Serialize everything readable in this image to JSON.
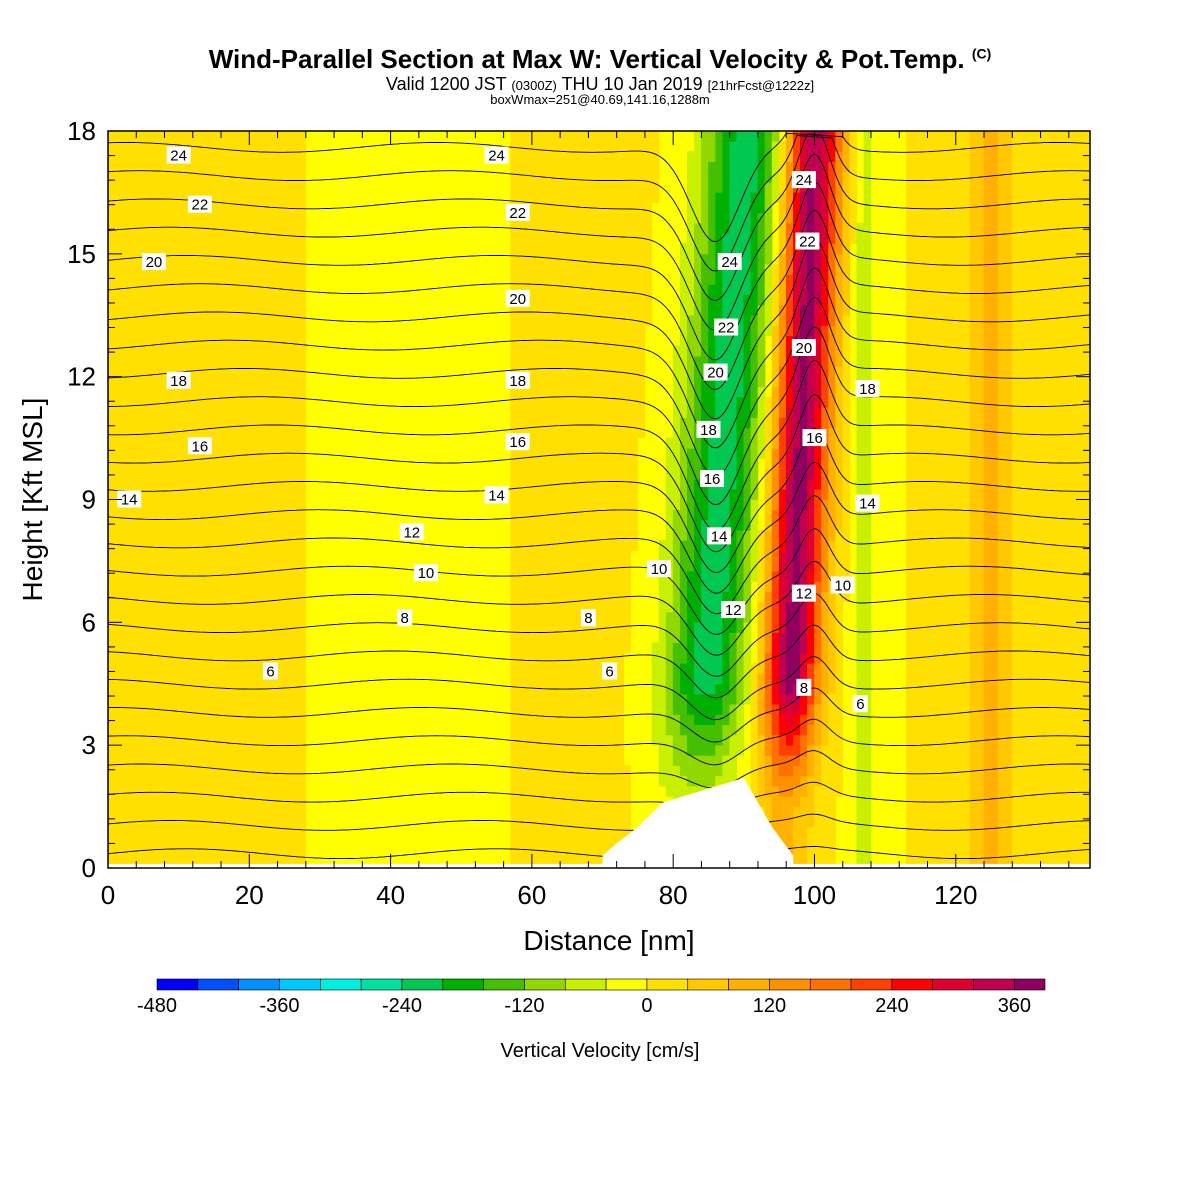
{
  "header": {
    "title_main": "Wind-Parallel Section at Max W: Vertical Velocity & Pot.Temp.",
    "title_mark": "(C)",
    "valid_prefix": "Valid 1200 JST",
    "valid_zulu": "(0300Z)",
    "valid_suffix": "THU 10 Jan 2019",
    "forecast": "[21hrFcst@1222z]",
    "box_info": "boxWmax=251@40.69,141.16,1288m"
  },
  "colors": {
    "background_zero": "#ffff00",
    "terrain": "#ffffff",
    "contour": "#000000"
  },
  "chart_data": {
    "type": "heatmap",
    "xlabel": "Distance [nm]",
    "ylabel": "Height [Kft MSL]",
    "xlim": [
      0,
      139
    ],
    "ylim": [
      0,
      18
    ],
    "x_ticks": [
      "0",
      "20",
      "40",
      "60",
      "80",
      "100",
      "120"
    ],
    "y_ticks": [
      "0",
      "3",
      "6",
      "9",
      "12",
      "15",
      "18"
    ],
    "colorbar": {
      "label": "Vertical Velocity [cm/s]",
      "range": [
        -480,
        390
      ],
      "step": 40,
      "tick_labels": [
        "-480",
        "-360",
        "-240",
        "-120",
        "0",
        "120",
        "240",
        "360"
      ],
      "colors": [
        "#0000ff",
        "#0050ff",
        "#0090ff",
        "#00c8ff",
        "#00f0e0",
        "#00e0a0",
        "#00c850",
        "#00b000",
        "#44c000",
        "#90d800",
        "#c8f000",
        "#ffff00",
        "#ffe000",
        "#ffc800",
        "#ffb000",
        "#ff9000",
        "#ff7000",
        "#ff4000",
        "#ff0000",
        "#e00030",
        "#c00050",
        "#900060",
        "#600090"
      ]
    },
    "velocity_features": [
      {
        "kind": "downdraft",
        "x_center": 86,
        "width": 6,
        "peak": -220
      },
      {
        "kind": "updraft",
        "x_center": 99,
        "width": 4,
        "peak": 380
      },
      {
        "kind": "weak_downdraft",
        "x_center": 107,
        "width": 2,
        "peak": -60
      },
      {
        "kind": "weak_updraft",
        "x_center": 125,
        "width": 3,
        "peak": 90
      }
    ],
    "terrain_profile": [
      {
        "x": 70,
        "h": 0.3
      },
      {
        "x": 72,
        "h": 0.6
      },
      {
        "x": 75,
        "h": 1.0
      },
      {
        "x": 78.5,
        "h": 1.6
      },
      {
        "x": 90,
        "h": 2.2
      },
      {
        "x": 94,
        "h": 1.0
      },
      {
        "x": 97,
        "h": 0.3
      }
    ],
    "potential_temperature_labels": [
      {
        "text": "24",
        "x": 10,
        "y": 17.4
      },
      {
        "text": "24",
        "x": 55,
        "y": 17.4
      },
      {
        "text": "22",
        "x": 13,
        "y": 16.2
      },
      {
        "text": "22",
        "x": 58,
        "y": 16.0
      },
      {
        "text": "20",
        "x": 6.5,
        "y": 14.8
      },
      {
        "text": "20",
        "x": 58,
        "y": 13.9
      },
      {
        "text": "18",
        "x": 10,
        "y": 11.9
      },
      {
        "text": "18",
        "x": 58,
        "y": 11.9
      },
      {
        "text": "16",
        "x": 13,
        "y": 10.3
      },
      {
        "text": "16",
        "x": 58,
        "y": 10.4
      },
      {
        "text": "14",
        "x": 3,
        "y": 9.0
      },
      {
        "text": "14",
        "x": 55,
        "y": 9.1
      },
      {
        "text": "12",
        "x": 43,
        "y": 8.2
      },
      {
        "text": "10",
        "x": 45,
        "y": 7.2
      },
      {
        "text": "10",
        "x": 78,
        "y": 7.3
      },
      {
        "text": "8",
        "x": 42,
        "y": 6.1
      },
      {
        "text": "8",
        "x": 68,
        "y": 6.1
      },
      {
        "text": "6",
        "x": 23,
        "y": 4.8
      },
      {
        "text": "6",
        "x": 71,
        "y": 4.8
      },
      {
        "text": "24",
        "x": 88,
        "y": 14.8
      },
      {
        "text": "22",
        "x": 87.5,
        "y": 13.2
      },
      {
        "text": "20",
        "x": 86,
        "y": 12.1
      },
      {
        "text": "18",
        "x": 85,
        "y": 10.7
      },
      {
        "text": "16",
        "x": 85.5,
        "y": 9.5
      },
      {
        "text": "14",
        "x": 86.5,
        "y": 8.1
      },
      {
        "text": "12",
        "x": 88.5,
        "y": 6.3
      },
      {
        "text": "24",
        "x": 98.5,
        "y": 16.8
      },
      {
        "text": "22",
        "x": 99,
        "y": 15.3
      },
      {
        "text": "20",
        "x": 98.5,
        "y": 12.7
      },
      {
        "text": "16",
        "x": 100,
        "y": 10.5
      },
      {
        "text": "12",
        "x": 98.5,
        "y": 6.7
      },
      {
        "text": "8",
        "x": 98.5,
        "y": 4.4
      },
      {
        "text": "18",
        "x": 107.5,
        "y": 11.7
      },
      {
        "text": "14",
        "x": 107.5,
        "y": 8.9
      },
      {
        "text": "10",
        "x": 104,
        "y": 6.9
      },
      {
        "text": "6",
        "x": 106.5,
        "y": 4.0
      }
    ]
  }
}
